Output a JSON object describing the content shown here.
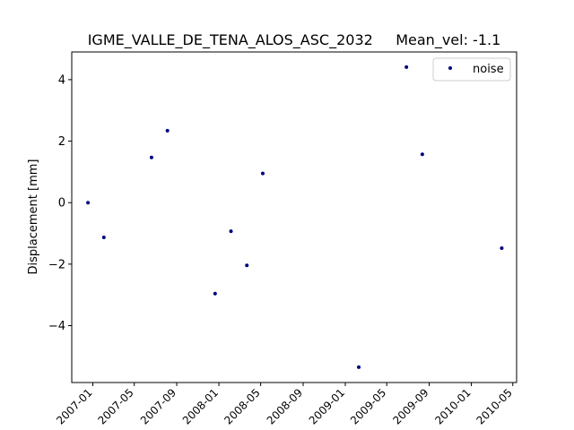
{
  "chart_data": {
    "type": "scatter",
    "title": "IGME_VALLE_DE_TENA_ALOS_ASC_2032     Mean_vel: -1.1",
    "xlabel": "",
    "ylabel": "Displacement [mm]",
    "x_axis_type": "date",
    "xlim": [
      "2006-11-01",
      "2010-05-12"
    ],
    "ylim": [
      -5.85,
      4.9
    ],
    "grid": false,
    "legend_position": "top-right",
    "x_ticks": [
      "2007-01",
      "2007-05",
      "2007-09",
      "2008-01",
      "2008-05",
      "2008-09",
      "2009-01",
      "2009-05",
      "2009-09",
      "2010-01",
      "2010-05"
    ],
    "y_ticks": [
      4,
      2,
      0,
      -2,
      -4
    ],
    "y_tick_labels": [
      "4",
      "2",
      "0",
      "−2",
      "−4"
    ],
    "series": [
      {
        "name": "noise",
        "color": "#00007f",
        "marker": "dot",
        "points": [
          {
            "x": "2006-12-18",
            "y": 0.0
          },
          {
            "x": "2007-02-02",
            "y": -1.13
          },
          {
            "x": "2007-06-20",
            "y": 1.47
          },
          {
            "x": "2007-08-05",
            "y": 2.34
          },
          {
            "x": "2007-12-21",
            "y": -2.96
          },
          {
            "x": "2008-02-05",
            "y": -0.93
          },
          {
            "x": "2008-03-22",
            "y": -2.04
          },
          {
            "x": "2008-05-07",
            "y": 0.95
          },
          {
            "x": "2009-02-09",
            "y": -5.35
          },
          {
            "x": "2009-06-27",
            "y": 4.41
          },
          {
            "x": "2009-08-12",
            "y": 1.57
          },
          {
            "x": "2010-03-30",
            "y": -1.48
          }
        ]
      }
    ]
  }
}
